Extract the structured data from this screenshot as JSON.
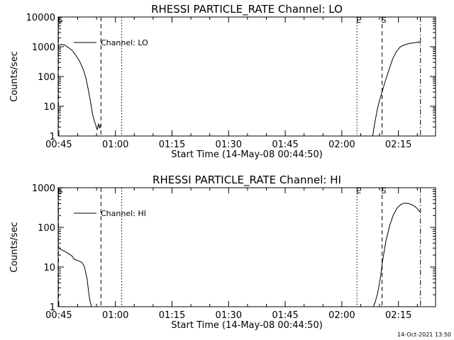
{
  "chart_data": [
    {
      "type": "line",
      "title": "RHESSI PARTICLE_RATE Channel: LO",
      "xlabel": "Start Time (14-May-08 00:44:50)",
      "ylabel": "Counts/sec",
      "yscale": "log",
      "xlim": [
        "00:44:50",
        "02:24:50"
      ],
      "ylim": [
        1,
        10000
      ],
      "xtick_labels": [
        "00:45",
        "01:00",
        "01:15",
        "01:30",
        "01:45",
        "02:00",
        "02:15"
      ],
      "ytick_labels": [
        "1",
        "10",
        "100",
        "1000",
        "10000"
      ],
      "legend": {
        "position": "top-left",
        "label": "Channel: LO"
      },
      "markers": [
        {
          "time": "00:44:55",
          "style": "dashed",
          "label": "S"
        },
        {
          "time": "00:56:10",
          "style": "dashed",
          "label": ""
        },
        {
          "time": "01:01:40",
          "style": "dotted",
          "label": ""
        },
        {
          "time": "02:04:00",
          "style": "dotted",
          "label": "E"
        },
        {
          "time": "02:10:40",
          "style": "dashed",
          "label": "S"
        },
        {
          "time": "02:20:50",
          "style": "dashdot",
          "label": ""
        }
      ],
      "series": [
        {
          "name": "Channel: LO",
          "segments": [
            {
              "x": [
                "00:44:50",
                "00:45:30",
                "00:46:30",
                "00:47:30",
                "00:48:30",
                "00:49:30",
                "00:50:30",
                "00:51:30",
                "00:52:10",
                "00:52:50",
                "00:53:30",
                "00:54:00",
                "00:54:30",
                "00:54:50",
                "00:55:10",
                "00:55:30",
                "00:55:50",
                "00:56:00"
              ],
              "y": [
                1100,
                1200,
                1150,
                950,
                760,
                520,
                330,
                170,
                90,
                35,
                12,
                5,
                3,
                2.2,
                1.6,
                2.6,
                1.8,
                2.4
              ]
            },
            {
              "x": [
                "02:08:10",
                "02:08:40",
                "02:09:20",
                "02:10:00",
                "02:10:40",
                "02:11:30",
                "02:12:30",
                "02:13:30",
                "02:14:30",
                "02:15:30",
                "02:16:30",
                "02:17:30",
                "02:18:30",
                "02:19:30",
                "02:20:20",
                "02:20:50"
              ],
              "y": [
                1,
                2.5,
                7,
                16,
                30,
                70,
                170,
                400,
                700,
                1000,
                1150,
                1250,
                1320,
                1380,
                1450,
                1300
              ]
            }
          ]
        }
      ]
    },
    {
      "type": "line",
      "title": "RHESSI PARTICLE_RATE Channel: HI",
      "xlabel": "Start Time (14-May-08 00:44:50)",
      "ylabel": "Counts/sec",
      "yscale": "log",
      "xlim": [
        "00:44:50",
        "02:24:50"
      ],
      "ylim": [
        1,
        1000
      ],
      "xtick_labels": [
        "00:45",
        "01:00",
        "01:15",
        "01:30",
        "01:45",
        "02:00",
        "02:15"
      ],
      "ytick_labels": [
        "1",
        "10",
        "100",
        "1000"
      ],
      "legend": {
        "position": "top-left",
        "label": "Channel: HI"
      },
      "markers": [
        {
          "time": "00:44:55",
          "style": "dashed",
          "label": "S"
        },
        {
          "time": "00:56:10",
          "style": "dashed",
          "label": ""
        },
        {
          "time": "01:01:40",
          "style": "dotted",
          "label": ""
        },
        {
          "time": "02:04:00",
          "style": "dotted",
          "label": "E"
        },
        {
          "time": "02:10:40",
          "style": "dashed",
          "label": "S"
        },
        {
          "time": "02:20:50",
          "style": "dashdot",
          "label": ""
        }
      ],
      "series": [
        {
          "name": "Channel: HI",
          "segments": [
            {
              "x": [
                "00:44:50",
                "00:45:30",
                "00:46:30",
                "00:47:30",
                "00:48:30",
                "00:49:00",
                "00:49:40",
                "00:50:30",
                "00:51:10",
                "00:51:50",
                "00:52:30",
                "00:53:00",
                "00:53:20",
                "00:53:40"
              ],
              "y": [
                32,
                28,
                25,
                22,
                19,
                16,
                15,
                14,
                13,
                10,
                5,
                2,
                1.3,
                1
              ]
            },
            {
              "x": [
                "02:08:20",
                "02:08:50",
                "02:09:30",
                "02:10:10",
                "02:10:50",
                "02:11:40",
                "02:12:40",
                "02:13:40",
                "02:14:40",
                "02:15:40",
                "02:16:40",
                "02:17:40",
                "02:18:40",
                "02:19:40",
                "02:20:20",
                "02:20:50"
              ],
              "y": [
                1,
                1.3,
                2.2,
                5,
                15,
                45,
                110,
                210,
                310,
                380,
                410,
                400,
                370,
                320,
                270,
                240
              ]
            }
          ]
        }
      ]
    }
  ],
  "footer": {
    "timestamp": "14-Oct-2021 13:50"
  }
}
